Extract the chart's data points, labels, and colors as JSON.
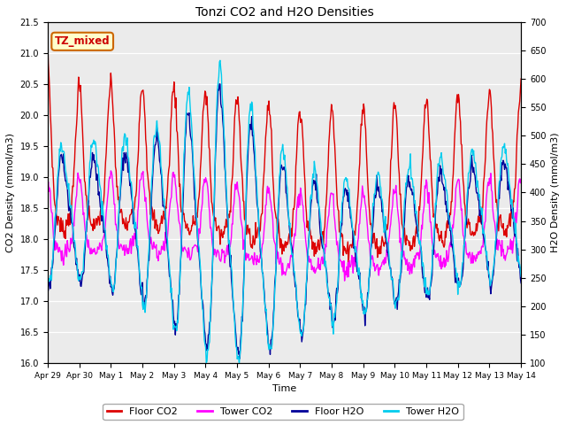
{
  "title": "Tonzi CO2 and H2O Densities",
  "xlabel": "Time",
  "ylabel_left": "CO2 Density (mmol/m3)",
  "ylabel_right": "H2O Density (mmol/m3)",
  "co2_ylim": [
    16.0,
    21.5
  ],
  "h2o_ylim": [
    100,
    700
  ],
  "co2_yticks": [
    16.0,
    16.5,
    17.0,
    17.5,
    18.0,
    18.5,
    19.0,
    19.5,
    20.0,
    20.5,
    21.0,
    21.5
  ],
  "h2o_yticks": [
    100,
    150,
    200,
    250,
    300,
    350,
    400,
    450,
    500,
    550,
    600,
    650,
    700
  ],
  "color_floor_co2": "#dd0000",
  "color_tower_co2": "#ff00ff",
  "color_floor_h2o": "#000099",
  "color_tower_h2o": "#00ccee",
  "label_floor_co2": "Floor CO2",
  "label_tower_co2": "Tower CO2",
  "label_floor_h2o": "Floor H2O",
  "label_tower_h2o": "Tower H2O",
  "annotation_text": "TZ_mixed",
  "annotation_bg": "#ffffcc",
  "annotation_edge": "#cc6600",
  "background_color": "#ebebeb",
  "n_days": 15,
  "samples_per_day": 48,
  "linewidth": 1.0,
  "figwidth": 6.4,
  "figheight": 4.8,
  "dpi": 100
}
